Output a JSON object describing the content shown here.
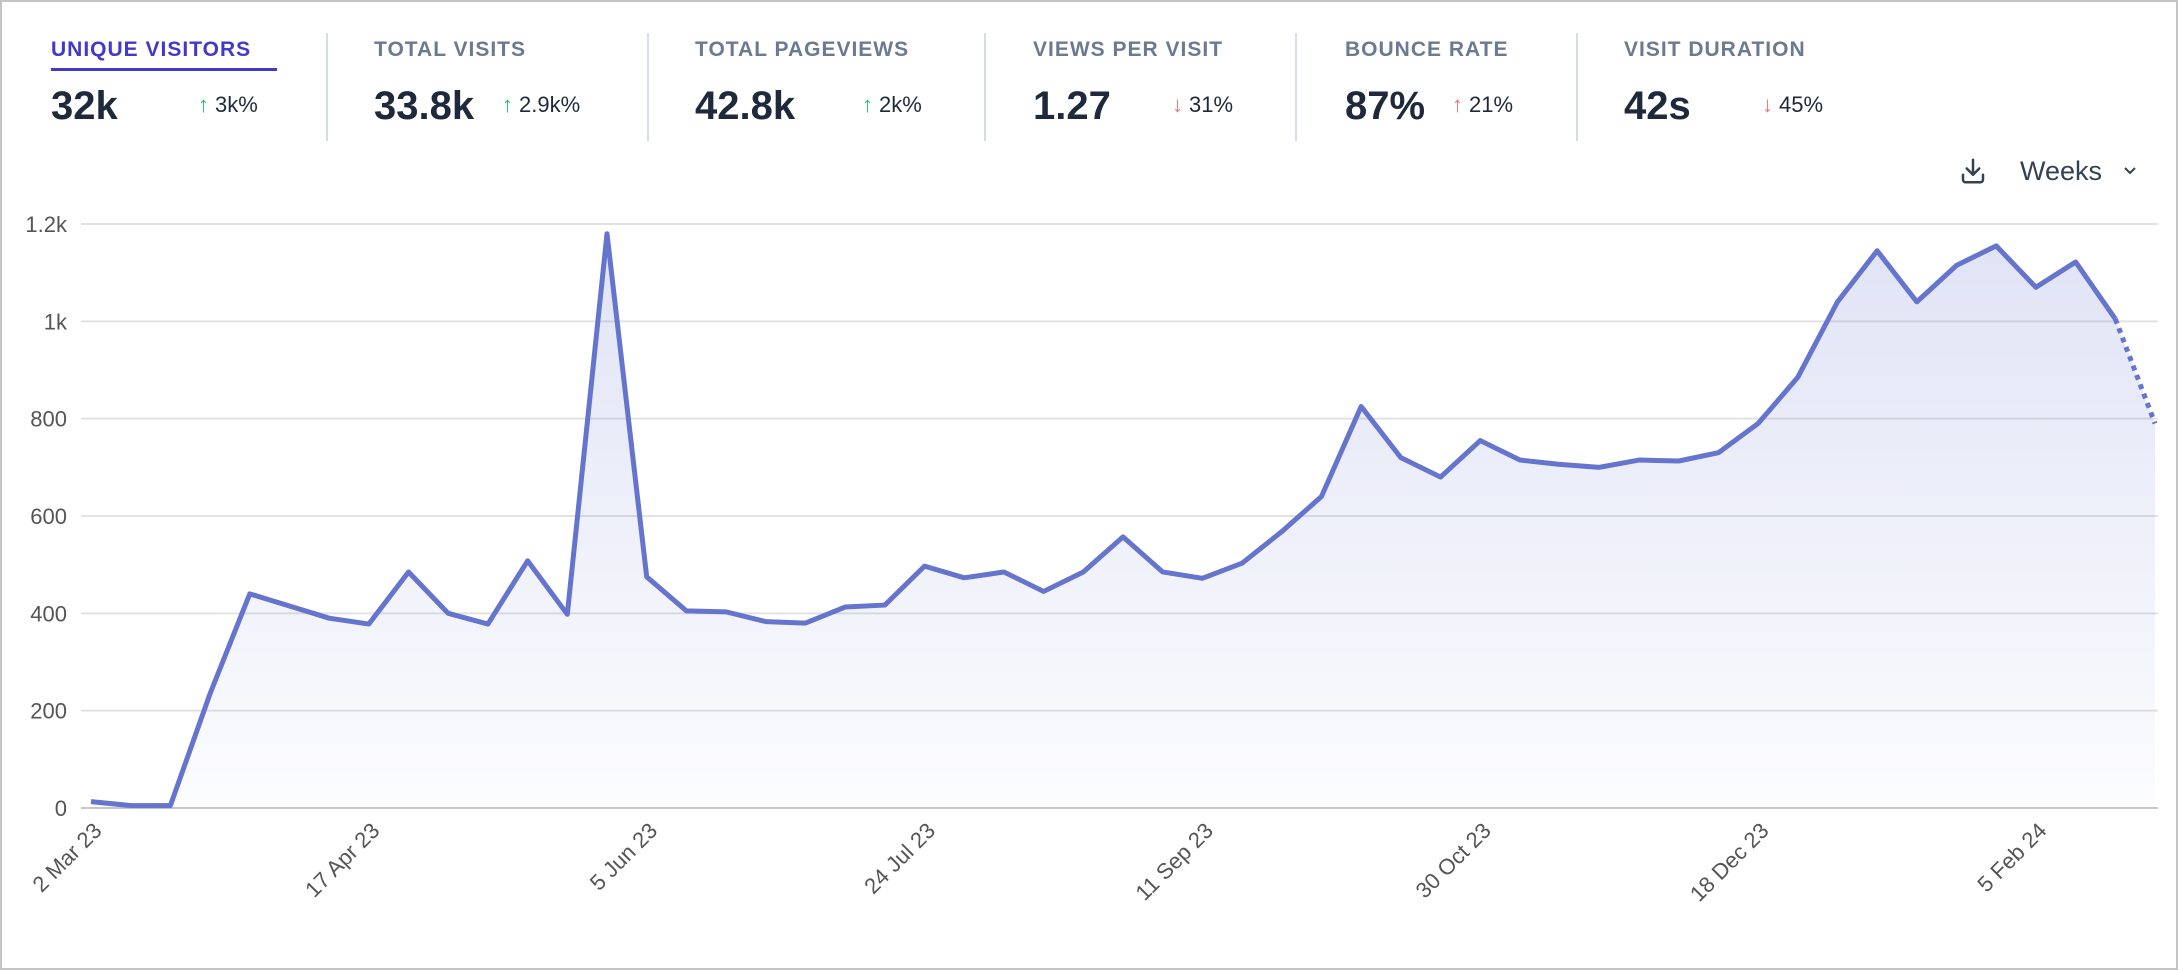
{
  "metrics": [
    {
      "label": "UNIQUE VISITORS",
      "value": "32k",
      "change": "3k%",
      "direction": "up",
      "active": true
    },
    {
      "label": "TOTAL VISITS",
      "value": "33.8k",
      "change": "2.9k%",
      "direction": "up"
    },
    {
      "label": "TOTAL PAGEVIEWS",
      "value": "42.8k",
      "change": "2k%",
      "direction": "up"
    },
    {
      "label": "VIEWS PER VISIT",
      "value": "1.27",
      "change": "31%",
      "direction": "down"
    },
    {
      "label": "BOUNCE RATE",
      "value": "87%",
      "change": "21%",
      "direction": "up",
      "sentiment": "negative"
    },
    {
      "label": "VISIT DURATION",
      "value": "42s",
      "change": "45%",
      "direction": "down"
    }
  ],
  "controls": {
    "download_icon": "download-icon",
    "interval": "Weeks",
    "chevron_icon": "chevron-down-icon"
  },
  "colors": {
    "accent": "#4338ca",
    "line": "#6574cd",
    "up": "#22c55e",
    "down": "#f87171"
  },
  "chart_data": {
    "type": "area",
    "ylim": [
      0,
      1200
    ],
    "y_ticks": [
      "0",
      "200",
      "400",
      "600",
      "800",
      "1k",
      "1.2k"
    ],
    "x_tick_labels": [
      "2 Mar 23",
      "17 Apr 23",
      "5 Jun 23",
      "24 Jul 23",
      "11 Sep 23",
      "30 Oct 23",
      "18 Dec 23",
      "5 Feb 24"
    ],
    "x_tick_every": 7,
    "grid": true,
    "last_segment_dotted": true,
    "values": [
      13,
      5,
      5,
      235,
      440,
      415,
      390,
      378,
      485,
      400,
      378,
      508,
      398,
      1180,
      475,
      405,
      403,
      383,
      380,
      413,
      417,
      497,
      473,
      485,
      445,
      485,
      557,
      485,
      472,
      503,
      568,
      640,
      825,
      720,
      680,
      755,
      715,
      706,
      700,
      715,
      713,
      730,
      790,
      885,
      1040,
      1145,
      1040,
      1115,
      1155,
      1070,
      1122,
      1005,
      790
    ]
  }
}
